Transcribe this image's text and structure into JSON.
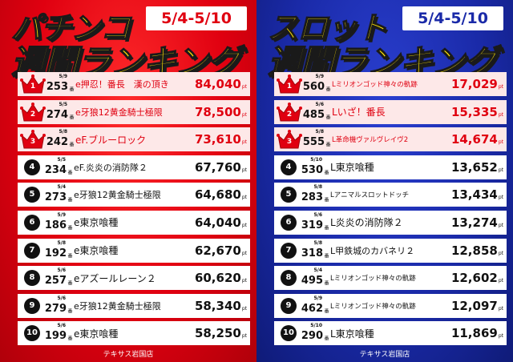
{
  "pachinko": {
    "title1": "パチンコ",
    "title2": "週間ランキング",
    "date_range": "5/4-5/10",
    "store": "テキサス岩国店",
    "rows": [
      {
        "rank": "1",
        "date": "5/9",
        "no": "253",
        "name": "e押忍！番長　漢の頂き",
        "pts": "84,040"
      },
      {
        "rank": "2",
        "date": "5/5",
        "no": "274",
        "name": "e牙狼12黄金騎士極限",
        "pts": "78,500"
      },
      {
        "rank": "3",
        "date": "5/8",
        "no": "242",
        "name": "eF.ブルーロック",
        "pts": "73,610"
      },
      {
        "rank": "4",
        "date": "5/5",
        "no": "234",
        "name": "eF.炎炎の消防隊２",
        "pts": "67,760"
      },
      {
        "rank": "5",
        "date": "5/4",
        "no": "273",
        "name": "e牙狼12黄金騎士極限",
        "pts": "64,680"
      },
      {
        "rank": "6",
        "date": "5/9",
        "no": "186",
        "name": "e東京喰種",
        "pts": "64,040"
      },
      {
        "rank": "7",
        "date": "5/8",
        "no": "192",
        "name": "e東京喰種",
        "pts": "62,670"
      },
      {
        "rank": "8",
        "date": "5/6",
        "no": "257",
        "name": "eアズールレーン２",
        "pts": "60,620"
      },
      {
        "rank": "9",
        "date": "5/6",
        "no": "279",
        "name": "e牙狼12黄金騎士極限",
        "pts": "58,340"
      },
      {
        "rank": "10",
        "date": "5/6",
        "no": "199",
        "name": "e東京喰種",
        "pts": "58,250"
      }
    ]
  },
  "slot": {
    "title1": "スロット",
    "title2": "週間ランキング",
    "date_range": "5/4-5/10",
    "store": "テキサス岩国店",
    "rows": [
      {
        "rank": "1",
        "date": "5/9",
        "no": "560",
        "name": "Lミリオンゴッド神々の軌跡",
        "pts": "17,029"
      },
      {
        "rank": "2",
        "date": "5/6",
        "no": "485",
        "name": "Lいざ！番長",
        "pts": "15,335"
      },
      {
        "rank": "3",
        "date": "5/8",
        "no": "555",
        "name": "L革命機ヴァルヴレイヴ2",
        "pts": "14,674"
      },
      {
        "rank": "4",
        "date": "5/10",
        "no": "530",
        "name": "L東京喰種",
        "pts": "13,652"
      },
      {
        "rank": "5",
        "date": "5/8",
        "no": "283",
        "name": "Lアニマルスロットドッチ",
        "pts": "13,434"
      },
      {
        "rank": "6",
        "date": "5/6",
        "no": "319",
        "name": "L炎炎の消防隊２",
        "pts": "13,274"
      },
      {
        "rank": "7",
        "date": "5/8",
        "no": "318",
        "name": "L甲鉄城のカバネリ２",
        "pts": "12,858"
      },
      {
        "rank": "8",
        "date": "5/4",
        "no": "495",
        "name": "Lミリオンゴッド神々の軌跡",
        "pts": "12,602"
      },
      {
        "rank": "9",
        "date": "5/9",
        "no": "462",
        "name": "Lミリオンゴッド神々の軌跡",
        "pts": "12,097"
      },
      {
        "rank": "10",
        "date": "5/10",
        "no": "290",
        "name": "L東京喰種",
        "pts": "11,869"
      }
    ]
  },
  "labels": {
    "unit_ban": "番",
    "unit_pt": "pt"
  },
  "colors": {
    "pachinko_bg": "#e00010",
    "slot_bg": "#1a2aa8",
    "title_yellow": "#ffe400"
  }
}
